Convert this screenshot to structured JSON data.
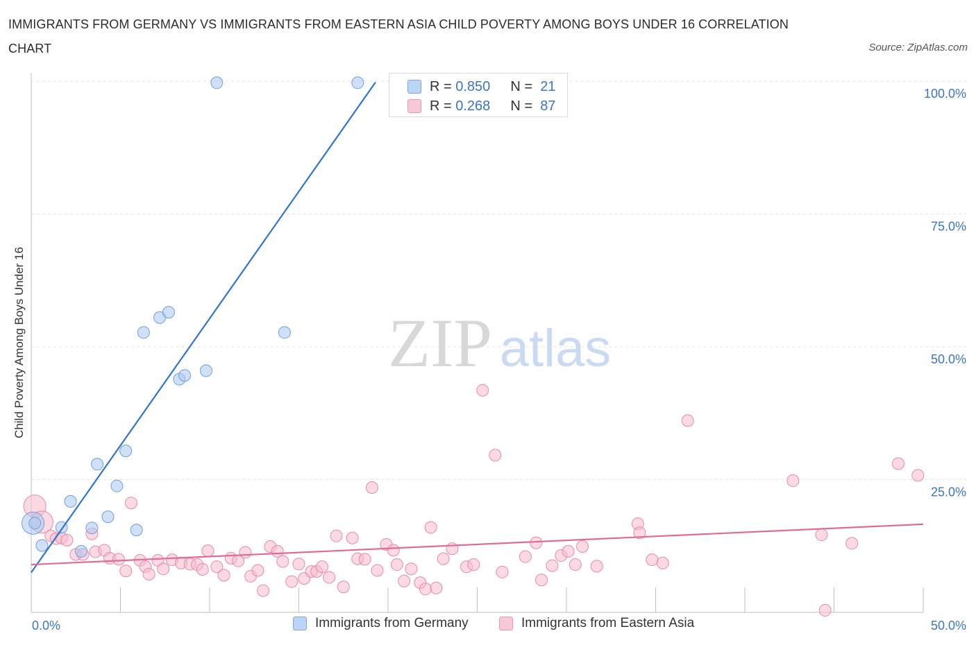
{
  "title": "IMMIGRANTS FROM GERMANY VS IMMIGRANTS FROM EASTERN ASIA CHILD POVERTY AMONG BOYS UNDER 16 CORRELATION CHART",
  "source": "Source: ZipAtlas.com",
  "watermark": {
    "zip": "ZIP",
    "atlas": "atlas"
  },
  "legend": {
    "rows": [
      {
        "r_label": "R =",
        "r_value": "0.850",
        "n_label": "N =",
        "n_value": "21"
      },
      {
        "r_label": "R =",
        "r_value": "0.268",
        "n_label": "N =",
        "n_value": "87"
      }
    ]
  },
  "bottom_legend": {
    "germany": "Immigrants from Germany",
    "eastern_asia": "Immigrants from Eastern Asia"
  },
  "chart_data": {
    "type": "scatter",
    "title": "IMMIGRANTS FROM GERMANY VS IMMIGRANTS FROM EASTERN ASIA CHILD POVERTY AMONG BOYS UNDER 16 CORRELATION CHART",
    "xlabel": "",
    "ylabel": "Child Poverty Among Boys Under 16",
    "xlim": [
      0,
      50
    ],
    "ylim": [
      0,
      100
    ],
    "x_tick_labels": [
      "0.0%",
      "50.0%"
    ],
    "y_tick_labels": [
      "25.0%",
      "50.0%",
      "75.0%",
      "100.0%"
    ],
    "y_ticks": [
      25,
      50,
      75,
      100
    ],
    "x_minor_ticks": [
      0,
      5,
      10,
      15,
      20,
      25,
      30,
      35,
      40,
      45,
      50
    ],
    "grid": true,
    "legend_position": "top-center",
    "series": [
      {
        "name": "Immigrants from Germany",
        "color": "#a9c8f0",
        "stroke": "#6f9fd8",
        "line_color": "#2f74d0",
        "r": 0.85,
        "n": 21,
        "trend": {
          "x": [
            0.0,
            19.3
          ],
          "y": [
            7.5,
            99.8
          ]
        },
        "points": [
          [
            0.2,
            16.8
          ],
          [
            0.6,
            12.6
          ],
          [
            1.7,
            16.0
          ],
          [
            2.2,
            20.9
          ],
          [
            2.8,
            11.5
          ],
          [
            3.4,
            15.9
          ],
          [
            3.7,
            27.9
          ],
          [
            4.3,
            18.0
          ],
          [
            4.8,
            23.8
          ],
          [
            5.3,
            30.4
          ],
          [
            5.9,
            15.5
          ],
          [
            6.3,
            52.7
          ],
          [
            7.2,
            55.5
          ],
          [
            7.7,
            56.5
          ],
          [
            8.3,
            43.9
          ],
          [
            8.6,
            44.6
          ],
          [
            9.8,
            45.5
          ],
          [
            10.4,
            99.7
          ],
          [
            14.2,
            52.7
          ],
          [
            18.3,
            99.7
          ]
        ],
        "big_points": [
          [
            0.1,
            16.8
          ]
        ]
      },
      {
        "name": "Immigrants from Eastern Asia",
        "color": "#f7bccd",
        "stroke": "#e88aa8",
        "line_color": "#e06a95",
        "r": 0.268,
        "n": 87,
        "trend": {
          "x": [
            0.0,
            50.0
          ],
          "y": [
            9.0,
            16.6
          ]
        },
        "points": [
          [
            1.1,
            14.4
          ],
          [
            1.4,
            13.9
          ],
          [
            1.7,
            14.0
          ],
          [
            2.0,
            13.6
          ],
          [
            2.5,
            10.9
          ],
          [
            2.9,
            10.9
          ],
          [
            3.4,
            14.8
          ],
          [
            3.6,
            11.4
          ],
          [
            4.1,
            11.7
          ],
          [
            4.4,
            10.2
          ],
          [
            4.9,
            10.0
          ],
          [
            5.3,
            7.8
          ],
          [
            5.6,
            20.6
          ],
          [
            6.1,
            9.8
          ],
          [
            6.4,
            8.6
          ],
          [
            6.6,
            7.2
          ],
          [
            7.1,
            9.8
          ],
          [
            7.4,
            8.2
          ],
          [
            7.9,
            9.9
          ],
          [
            8.4,
            9.3
          ],
          [
            8.9,
            9.1
          ],
          [
            9.3,
            9.0
          ],
          [
            9.6,
            8.1
          ],
          [
            9.9,
            11.6
          ],
          [
            10.4,
            8.6
          ],
          [
            10.8,
            7.0
          ],
          [
            11.2,
            10.2
          ],
          [
            11.6,
            9.7
          ],
          [
            12.0,
            11.3
          ],
          [
            12.3,
            6.8
          ],
          [
            12.7,
            7.9
          ],
          [
            13.0,
            4.1
          ],
          [
            13.4,
            12.4
          ],
          [
            13.8,
            11.5
          ],
          [
            14.1,
            9.6
          ],
          [
            14.6,
            5.8
          ],
          [
            15.0,
            9.1
          ],
          [
            15.3,
            6.4
          ],
          [
            15.7,
            7.7
          ],
          [
            16.0,
            7.7
          ],
          [
            16.3,
            8.6
          ],
          [
            16.7,
            6.6
          ],
          [
            17.1,
            14.4
          ],
          [
            17.5,
            4.8
          ],
          [
            18.0,
            14.0
          ],
          [
            18.3,
            10.1
          ],
          [
            18.7,
            10.0
          ],
          [
            19.1,
            23.5
          ],
          [
            19.4,
            7.9
          ],
          [
            19.9,
            12.8
          ],
          [
            20.3,
            11.7
          ],
          [
            20.5,
            9.0
          ],
          [
            20.9,
            5.9
          ],
          [
            21.3,
            8.2
          ],
          [
            21.8,
            5.6
          ],
          [
            22.1,
            4.4
          ],
          [
            22.4,
            16.0
          ],
          [
            22.7,
            4.6
          ],
          [
            23.1,
            10.1
          ],
          [
            23.6,
            12.0
          ],
          [
            24.4,
            8.6
          ],
          [
            24.8,
            9.0
          ],
          [
            25.3,
            41.8
          ],
          [
            26.0,
            29.6
          ],
          [
            26.4,
            7.6
          ],
          [
            27.7,
            10.5
          ],
          [
            28.3,
            13.1
          ],
          [
            28.6,
            6.1
          ],
          [
            29.2,
            8.8
          ],
          [
            29.7,
            10.7
          ],
          [
            30.1,
            11.5
          ],
          [
            30.5,
            9.0
          ],
          [
            30.9,
            12.4
          ],
          [
            31.7,
            8.7
          ],
          [
            34.0,
            16.7
          ],
          [
            34.1,
            15.0
          ],
          [
            34.8,
            9.9
          ],
          [
            35.4,
            9.3
          ],
          [
            36.8,
            36.1
          ],
          [
            42.7,
            24.8
          ],
          [
            44.3,
            14.6
          ],
          [
            44.5,
            0.4
          ],
          [
            46.0,
            13.0
          ],
          [
            48.6,
            28.0
          ],
          [
            49.7,
            25.8
          ]
        ],
        "big_points": [
          [
            0.2,
            20.0
          ],
          [
            0.6,
            17.0
          ]
        ]
      }
    ]
  }
}
